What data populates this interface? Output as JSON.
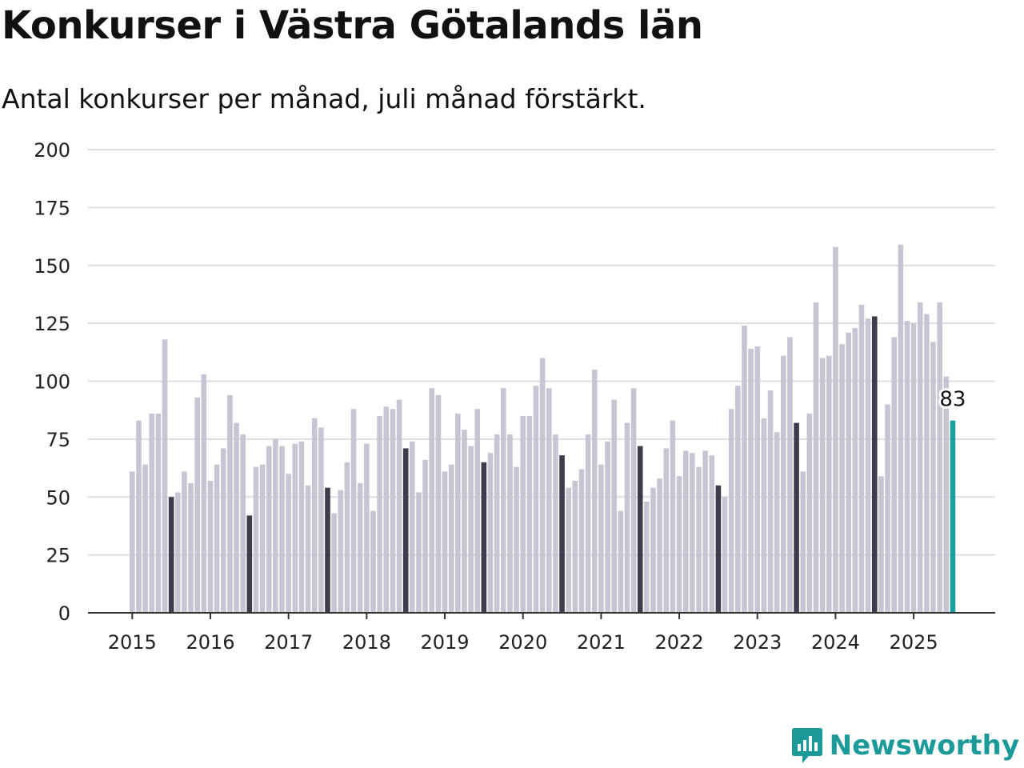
{
  "title": "Konkurser i Västra Götalands län",
  "subtitle": "Antal konkurser per månad, juli månad förstärkt.",
  "brand": "Newsworthy",
  "colors": {
    "bar": "#c6c5d3",
    "july_bar": "#3d3c4d",
    "latest_bar": "#1a9e9e",
    "grid": "#dddde3",
    "axis": "#333333",
    "brand": "#1c9a9a"
  },
  "chart_data": {
    "type": "bar",
    "title": "Konkurser i Västra Götalands län",
    "subtitle": "Antal konkurser per månad, juli månad förstärkt.",
    "xlabel": "",
    "ylabel": "",
    "ylim": [
      0,
      200
    ],
    "yticks": [
      0,
      25,
      50,
      75,
      100,
      125,
      150,
      175,
      200
    ],
    "xticks": [
      "2015",
      "2016",
      "2017",
      "2018",
      "2019",
      "2020",
      "2021",
      "2022",
      "2023",
      "2024",
      "2025"
    ],
    "grid": true,
    "start": "2015-01",
    "end": "2025-07",
    "highlight_month": "juli",
    "annotation": {
      "month": "2025-07",
      "label": "83"
    },
    "series": [
      {
        "year": "2015",
        "values": [
          61,
          83,
          64,
          86,
          86,
          118,
          50,
          52,
          61,
          56,
          93,
          103
        ]
      },
      {
        "year": "2016",
        "values": [
          57,
          64,
          71,
          94,
          82,
          77,
          42,
          63,
          64,
          72,
          75,
          72
        ]
      },
      {
        "year": "2017",
        "values": [
          60,
          73,
          74,
          55,
          84,
          80,
          54,
          43,
          53,
          65,
          88,
          56
        ]
      },
      {
        "year": "2018",
        "values": [
          73,
          44,
          85,
          89,
          88,
          92,
          71,
          74,
          52,
          66,
          97,
          94
        ]
      },
      {
        "year": "2019",
        "values": [
          61,
          64,
          86,
          79,
          72,
          88,
          65,
          69,
          77,
          97,
          77,
          63
        ]
      },
      {
        "year": "2020",
        "values": [
          85,
          85,
          98,
          110,
          97,
          77,
          68,
          54,
          57,
          62,
          77,
          105
        ]
      },
      {
        "year": "2021",
        "values": [
          64,
          74,
          92,
          44,
          82,
          97,
          72,
          48,
          54,
          58,
          71,
          83
        ]
      },
      {
        "year": "2022",
        "values": [
          59,
          70,
          69,
          63,
          70,
          68,
          55,
          50,
          88,
          98,
          124,
          114
        ]
      },
      {
        "year": "2023",
        "values": [
          115,
          84,
          96,
          78,
          111,
          119,
          82,
          61,
          86,
          134,
          110,
          111
        ]
      },
      {
        "year": "2024",
        "values": [
          158,
          116,
          121,
          123,
          133,
          127,
          128,
          59,
          90,
          119,
          159,
          126
        ]
      },
      {
        "year": "2025",
        "values": [
          125,
          134,
          129,
          117,
          134,
          102,
          83
        ]
      }
    ]
  }
}
